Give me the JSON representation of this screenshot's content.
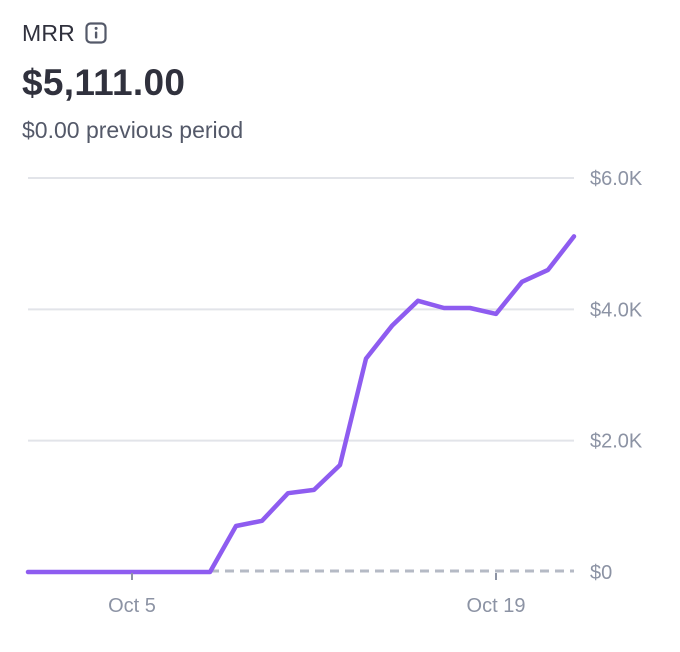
{
  "metric": {
    "name": "MRR",
    "info_icon": "info-icon",
    "value": "$5,111.00",
    "previous_period": "$0.00 previous period"
  },
  "colors": {
    "line": "#8e5cf0",
    "grid": "#e2e4e9",
    "axis_text": "#8c93a4",
    "baseline_dashed": "#b5bac5"
  },
  "chart_data": {
    "type": "line",
    "title": "MRR",
    "xlabel": "",
    "ylabel": "",
    "ylim": [
      0,
      6000
    ],
    "y_ticks": [
      0,
      2000,
      4000,
      6000
    ],
    "y_tick_labels": [
      "$0",
      "$2.0K",
      "$4.0K",
      "$6.0K"
    ],
    "x_tick_labels": [
      "Oct 5",
      "Oct 19"
    ],
    "grid": true,
    "series": [
      {
        "x": [
          "Oct 1",
          "Oct 2",
          "Oct 3",
          "Oct 4",
          "Oct 5",
          "Oct 6",
          "Oct 7",
          "Oct 8",
          "Oct 9",
          "Oct 10",
          "Oct 11",
          "Oct 12",
          "Oct 13",
          "Oct 14",
          "Oct 15",
          "Oct 16",
          "Oct 17",
          "Oct 18",
          "Oct 19",
          "Oct 20",
          "Oct 21",
          "Oct 22"
        ],
        "values": [
          0,
          0,
          0,
          0,
          0,
          0,
          0,
          0,
          700,
          780,
          1200,
          1250,
          1630,
          3250,
          3750,
          4130,
          4020,
          4020,
          3930,
          4420,
          4600,
          5111
        ]
      },
      {
        "x": [
          "Oct 8",
          "Oct 22"
        ],
        "values": [
          0,
          0
        ],
        "style": "dashed"
      }
    ]
  }
}
